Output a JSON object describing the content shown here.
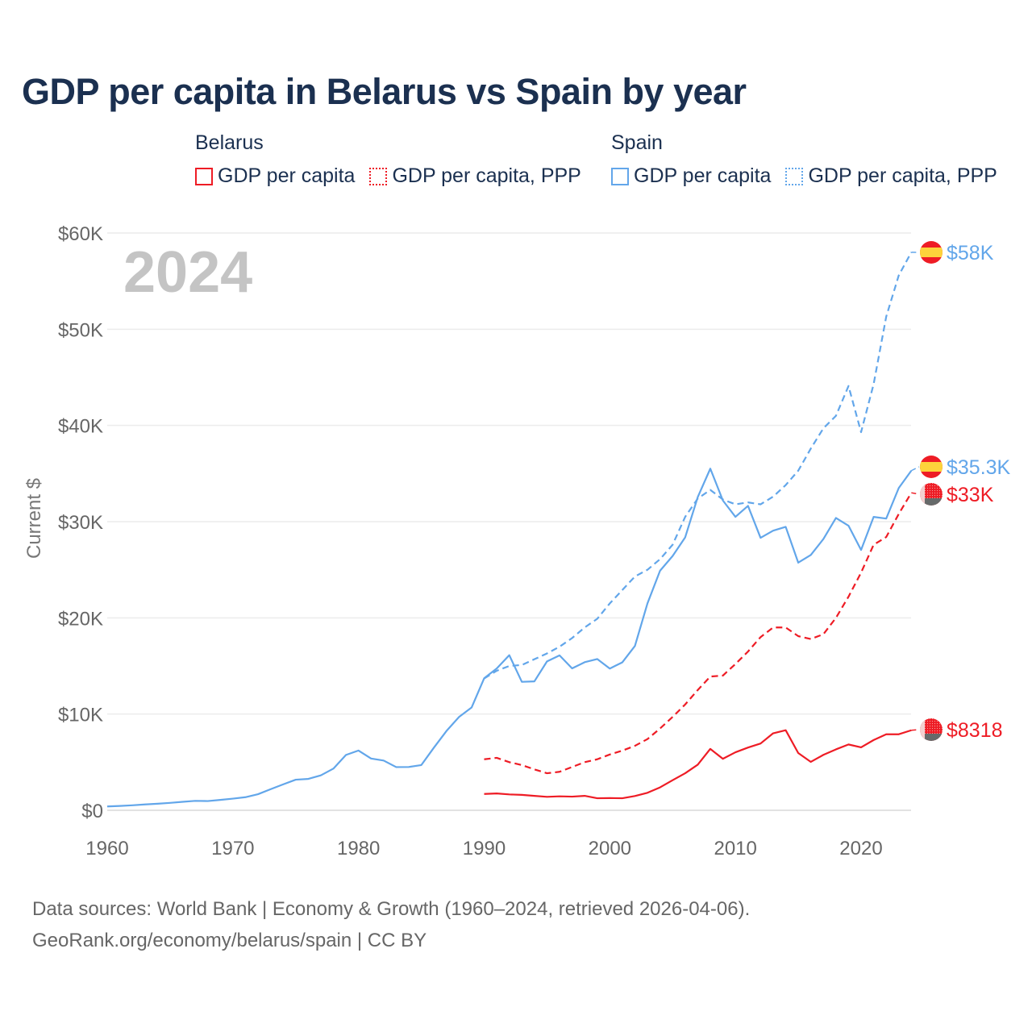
{
  "title": "GDP per capita in Belarus vs Spain by year",
  "legend": {
    "groups": [
      {
        "name": "Belarus",
        "items": [
          "GDP per capita",
          "GDP per capita, PPP"
        ],
        "color": "#ee1c25"
      },
      {
        "name": "Spain",
        "items": [
          "GDP per capita",
          "GDP per capita, PPP"
        ],
        "color": "#62a6ea"
      }
    ]
  },
  "footer": {
    "line1": "Data sources: World Bank | Economy & Growth (1960–2024, retrieved 2026-04-06).",
    "line2": "GeoRank.org/economy/belarus/spain | CC BY"
  },
  "chart_data": {
    "type": "line",
    "title": "GDP per capita in Belarus vs Spain by year",
    "year_watermark": "2024",
    "xlabel": "",
    "ylabel": "Current $",
    "xlim": [
      1960,
      2024
    ],
    "ylim": [
      0,
      60000
    ],
    "x_ticks": [
      1960,
      1970,
      1980,
      1990,
      2000,
      2010,
      2020
    ],
    "x_tick_labels": [
      "1960",
      "1970",
      "1980",
      "1990",
      "2000",
      "2010",
      "2020"
    ],
    "y_ticks": [
      0,
      10000,
      20000,
      30000,
      40000,
      50000,
      60000
    ],
    "y_tick_labels": [
      "$0",
      "$10K",
      "$20K",
      "$30K",
      "$40K",
      "$50K",
      "$60K"
    ],
    "grid": true,
    "series": [
      {
        "name": "Spain GDP per capita, PPP",
        "country": "Spain",
        "style": "dashed",
        "color": "#62a6ea",
        "end_label": "$58K",
        "start": 1990,
        "values": [
          13700,
          14500,
          15000,
          15100,
          15700,
          16300,
          17000,
          17900,
          19000,
          19900,
          21500,
          22900,
          24300,
          25000,
          26100,
          27600,
          30500,
          32400,
          33300,
          32300,
          31800,
          32000,
          31800,
          32600,
          33800,
          35300,
          37600,
          39700,
          41000,
          44100,
          39300,
          44300,
          51300,
          55600,
          58000
        ]
      },
      {
        "name": "Spain GDP per capita",
        "country": "Spain",
        "style": "solid",
        "color": "#62a6ea",
        "end_label": "$35.3K",
        "start": 1960,
        "values": [
          400,
          450,
          520,
          610,
          680,
          770,
          880,
          980,
          960,
          1080,
          1210,
          1360,
          1670,
          2190,
          2690,
          3180,
          3260,
          3630,
          4330,
          5750,
          6210,
          5380,
          5170,
          4490,
          4500,
          4700,
          6510,
          8240,
          9700,
          10680,
          13720,
          14740,
          16120,
          13350,
          13400,
          15470,
          16100,
          14750,
          15390,
          15720,
          14730,
          15380,
          17080,
          21510,
          24900,
          26430,
          28370,
          32550,
          35510,
          32200,
          30500,
          31640,
          28320,
          29060,
          29460,
          25740,
          26540,
          28190,
          30380,
          29580,
          27060,
          30490,
          30320,
          33500,
          35300
        ]
      },
      {
        "name": "Belarus GDP per capita, PPP",
        "country": "Belarus",
        "style": "dashed",
        "color": "#ee1c25",
        "end_label": "$33K",
        "start": 1990,
        "values": [
          5300,
          5450,
          5000,
          4700,
          4250,
          3850,
          4000,
          4500,
          5000,
          5300,
          5800,
          6200,
          6700,
          7400,
          8500,
          9700,
          11000,
          12500,
          13900,
          14000,
          15200,
          16500,
          18000,
          19000,
          19000,
          18100,
          17800,
          18300,
          20000,
          22200,
          24700,
          27600,
          28400,
          30800,
          33000
        ]
      },
      {
        "name": "Belarus GDP per capita",
        "country": "Belarus",
        "style": "solid",
        "color": "#ee1c25",
        "end_label": "$8318",
        "start": 1990,
        "values": [
          1700,
          1750,
          1650,
          1600,
          1500,
          1400,
          1450,
          1420,
          1500,
          1250,
          1270,
          1250,
          1480,
          1820,
          2380,
          3130,
          3850,
          4740,
          6380,
          5350,
          6030,
          6520,
          6940,
          8000,
          8320,
          5950,
          5030,
          5760,
          6330,
          6840,
          6540,
          7300,
          7900,
          7900,
          8318
        ]
      }
    ]
  }
}
